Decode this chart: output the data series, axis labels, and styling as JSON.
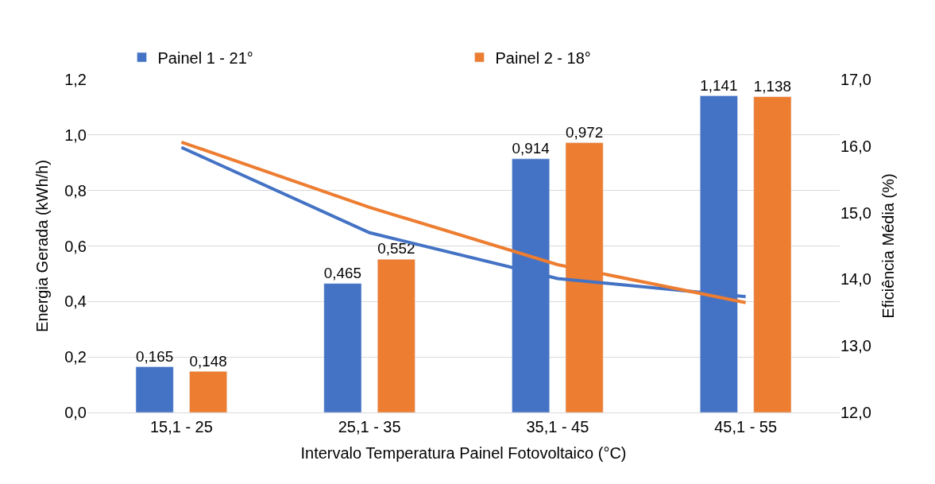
{
  "chart_data": {
    "type": "bar",
    "xlabel": "Intervalo Temperatura Painel Fotovoltaico (°C)",
    "ylabel": "Energia Gerada (kWh/h)",
    "y2label": "Eficiência Média (%)",
    "categories": [
      "15,1 - 25",
      "25,1 - 35",
      "35,1 - 45",
      "45,1 - 55"
    ],
    "series": [
      {
        "name": "Painel 1 - 21°",
        "color": "#4472c4",
        "values": [
          0.165,
          0.465,
          0.914,
          1.141
        ],
        "value_labels": [
          "0,165",
          "0,465",
          "0,914",
          "1,141"
        ]
      },
      {
        "name": "Painel 2 - 18°",
        "color": "#ed7d31",
        "values": [
          0.148,
          0.552,
          0.972,
          1.138
        ],
        "value_labels": [
          "0,148",
          "0,552",
          "0,972",
          "1,138"
        ]
      },
      {
        "type": "line",
        "axis": "y2",
        "color": "#4472c4",
        "values": [
          15.98,
          14.7,
          14.01,
          13.74
        ]
      },
      {
        "type": "line",
        "axis": "y2",
        "color": "#ed7d31",
        "values": [
          16.06,
          15.08,
          14.22,
          13.65
        ]
      }
    ],
    "ylim": [
      0,
      1.2
    ],
    "yticks": [
      {
        "value": 0,
        "label": "0,0"
      },
      {
        "value": 0.2,
        "label": "0,2"
      },
      {
        "value": 0.4,
        "label": "0,4"
      },
      {
        "value": 0.6,
        "label": "0,6"
      },
      {
        "value": 0.8,
        "label": "0,8"
      },
      {
        "value": 1.0,
        "label": "1,0"
      },
      {
        "value": 1.2,
        "label": "1,2"
      }
    ],
    "y2lim": [
      12,
      17
    ],
    "y2ticks": [
      {
        "value": 12,
        "label": "12,0"
      },
      {
        "value": 13,
        "label": "13,0"
      },
      {
        "value": 14,
        "label": "14,0"
      },
      {
        "value": 15,
        "label": "15,0"
      },
      {
        "value": 16,
        "label": "16,0"
      },
      {
        "value": 17,
        "label": "17,0"
      }
    ],
    "grid": "y",
    "legend": "top",
    "line_style": "solid",
    "marker": "none"
  }
}
